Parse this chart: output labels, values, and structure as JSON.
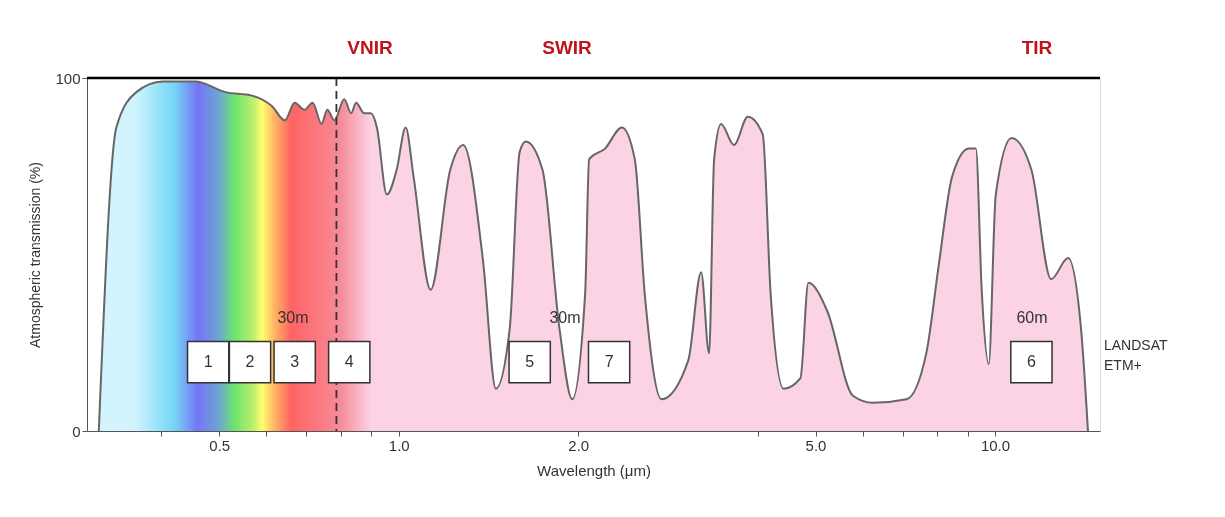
{
  "chart_data": {
    "type": "area",
    "xlabel": "Wavelength (μm)",
    "ylabel": "Atmospheric transmission (%)",
    "log": "x",
    "xlim": [
      0.3,
      15
    ],
    "ylim": [
      0,
      100
    ],
    "xticks": [
      {
        "value": 0.4,
        "label": null
      },
      {
        "value": 0.5,
        "label": "0.5"
      },
      {
        "value": 0.6,
        "label": null
      },
      {
        "value": 0.7,
        "label": null
      },
      {
        "value": 0.8,
        "label": null
      },
      {
        "value": 0.9,
        "label": null
      },
      {
        "value": 1,
        "label": "1.0"
      },
      {
        "value": 2,
        "label": "2.0"
      },
      {
        "value": 4,
        "label": null
      },
      {
        "value": 5,
        "label": "5.0"
      },
      {
        "value": 6,
        "label": null
      },
      {
        "value": 7,
        "label": null
      },
      {
        "value": 8,
        "label": null
      },
      {
        "value": 9,
        "label": null
      },
      {
        "value": 10,
        "label": "10.0"
      }
    ],
    "yticks": [
      0,
      100
    ],
    "series": [
      {
        "color": "#f9c0da",
        "x": [
          0.314,
          0.336,
          0.363,
          0.402,
          0.456,
          0.512,
          0.567,
          0.613,
          0.644,
          0.669,
          0.695,
          0.717,
          0.742,
          0.759,
          0.78,
          0.81,
          0.832,
          0.848,
          0.875,
          0.898,
          0.919,
          0.955,
          0.992,
          1.027,
          1.059,
          1.131,
          1.22,
          1.283,
          1.385,
          1.455,
          1.535,
          1.595,
          1.633,
          1.742,
          1.86,
          1.954,
          2.054,
          2.086,
          2.218,
          2.367,
          2.488,
          2.585,
          2.759,
          3.059,
          3.215,
          3.315,
          3.38,
          3.472,
          3.648,
          3.85,
          4.078,
          4.204,
          4.42,
          4.717,
          4.864,
          5.231,
          5.777,
          6.237,
          7.105,
          7.669,
          8.062,
          8.472,
          9.043,
          9.287,
          9.505,
          9.76,
          10.03,
          10.66,
          11.51,
          12.42,
          13.26,
          13.94,
          14.32
        ],
        "values": [
          0,
          86,
          96,
          99,
          99,
          96,
          95,
          92,
          88,
          93,
          91,
          93,
          87,
          91,
          88,
          94,
          90,
          93,
          90,
          90,
          86,
          67,
          74,
          86,
          72,
          40,
          74,
          81,
          48,
          12,
          29,
          79,
          82,
          74,
          29,
          9,
          39,
          77,
          80,
          86,
          77,
          39,
          9,
          20,
          45,
          22,
          77,
          87,
          81,
          89,
          84,
          39,
          12,
          15,
          42,
          34,
          10,
          8,
          9,
          22,
          48,
          72,
          80,
          80,
          39,
          19,
          67,
          83,
          74,
          43,
          49,
          29,
          0
        ]
      }
    ],
    "ref_lines": [
      {
        "axis": "x",
        "value": 0.786,
        "color": "#333333",
        "line_style": "dashed"
      },
      {
        "axis": "y",
        "value": 100,
        "color": "#000000",
        "line_style": "solid"
      }
    ],
    "annotations": [
      "VNIR",
      "SWIR",
      "TIR",
      "30m",
      "30m",
      "60m",
      {
        "text": "1",
        "x": 0.479,
        "y": 19.5
      },
      {
        "text": "2",
        "x": 0.563,
        "y": 19.5
      },
      {
        "text": "3",
        "x": 0.669,
        "y": 19.5
      },
      {
        "text": "4",
        "x": 0.826,
        "y": 19.5
      },
      {
        "text": "5",
        "x": 1.658,
        "y": 19.5
      },
      {
        "text": "7",
        "x": 2.253,
        "y": 19.5
      },
      {
        "text": "6",
        "x": 11.51,
        "y": 19.5
      },
      "LANDSAT\nETM+"
    ]
  }
}
